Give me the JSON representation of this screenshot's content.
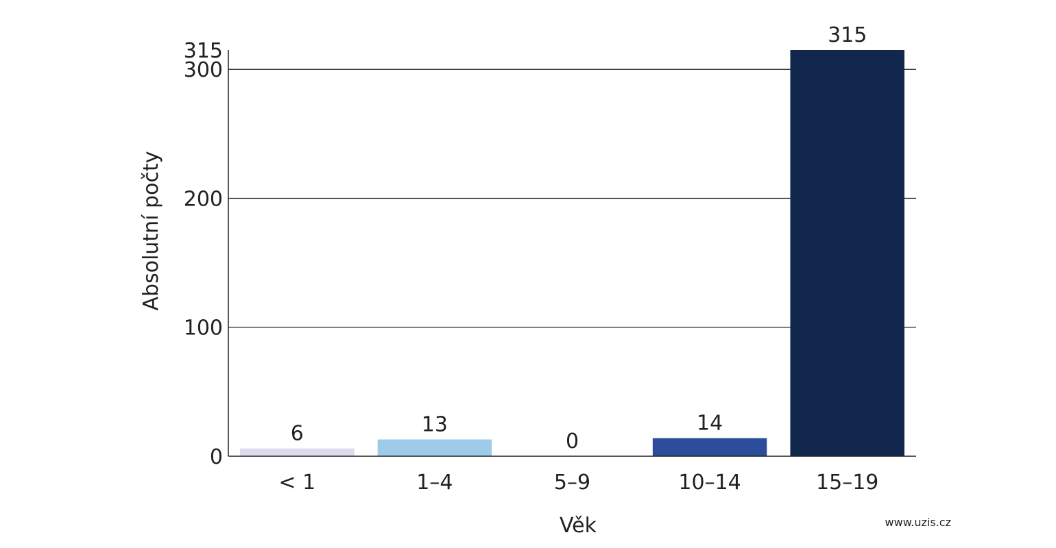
{
  "chart_data": {
    "type": "bar",
    "categories": [
      "< 1",
      "1–4",
      "5–9",
      "10–14",
      "15–19"
    ],
    "values": [
      6,
      13,
      0,
      14,
      315
    ],
    "value_labels": [
      "6",
      "13",
      "0",
      "14",
      "315"
    ],
    "colors": [
      "#dcdcee",
      "#9ecbea",
      "#ffffff",
      "#2b4d9c",
      "#11274e"
    ],
    "ylim": [
      0,
      315
    ],
    "yticks": [
      0,
      100,
      200,
      300,
      315
    ],
    "ytick_labels": [
      "0",
      "100",
      "200",
      "300",
      "315"
    ],
    "xlabel": "Věk",
    "ylabel": "Absolutní počty",
    "grid": true,
    "source": "www.uzis.cz"
  }
}
